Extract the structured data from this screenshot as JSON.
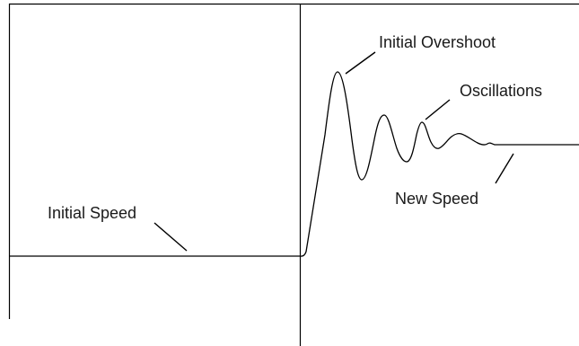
{
  "annotations": {
    "initial_overshoot": "Initial Overshoot",
    "oscillations": "Oscillations",
    "new_speed": "New Speed",
    "initial_speed": "Initial Speed"
  },
  "colors": {
    "line": "#000000",
    "text": "#1a1a1a",
    "background": "#ffffff"
  }
}
